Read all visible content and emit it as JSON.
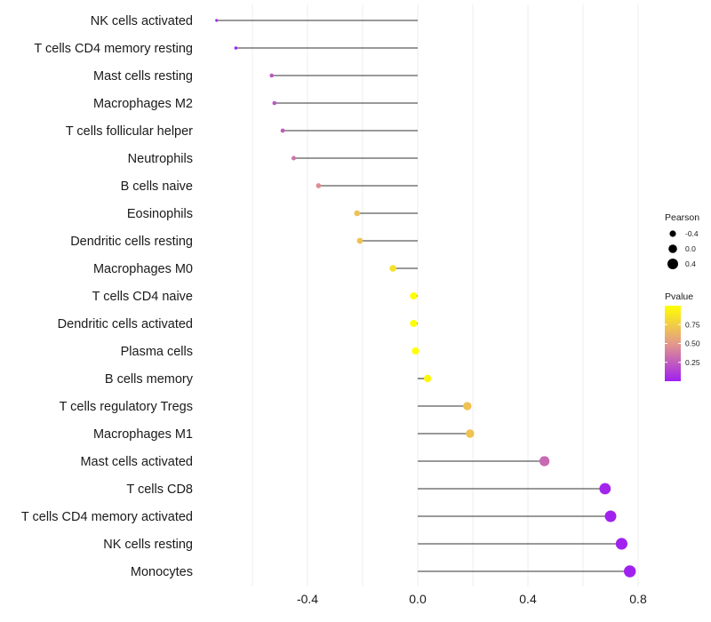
{
  "chart_data": {
    "type": "lollipop",
    "title": "",
    "xlabel": "",
    "ylabel": "",
    "xlim": [
      -0.72,
      0.8
    ],
    "xticks": [
      -0.4,
      0.0,
      0.4,
      0.8
    ],
    "xtick_labels": [
      "-0.4",
      "0.0",
      "0.4",
      "0.8"
    ],
    "grid": true,
    "categories": [
      "NK cells activated",
      "T cells CD4 memory resting",
      "Mast cells resting",
      "Macrophages M2",
      "T cells follicular helper",
      "Neutrophils",
      "B cells naive",
      "Eosinophils",
      "Dendritic cells resting",
      "Macrophages M0",
      "T cells CD4 naive",
      "Dendritic cells activated",
      "Plasma cells",
      "B cells memory",
      "T cells regulatory  Tregs ",
      "Macrophages M1",
      "Mast cells activated",
      "T cells CD8",
      "T cells CD4 memory activated",
      "NK cells resting",
      "Monocytes"
    ],
    "pearson": [
      -0.73,
      -0.66,
      -0.53,
      -0.52,
      -0.49,
      -0.45,
      -0.36,
      -0.22,
      -0.21,
      -0.09,
      -0.015,
      -0.015,
      -0.008,
      0.036,
      0.18,
      0.19,
      0.46,
      0.68,
      0.7,
      0.74,
      0.77
    ],
    "pvalue": [
      0.02,
      0.03,
      0.22,
      0.22,
      0.25,
      0.35,
      0.45,
      0.7,
      0.7,
      0.85,
      0.995,
      0.995,
      0.999,
      0.95,
      0.7,
      0.7,
      0.3,
      0.02,
      0.01,
      0.005,
      0.003
    ],
    "size_legend": {
      "title": "Pearson",
      "values": [
        -0.4,
        0.0,
        0.4
      ],
      "labels": [
        "-0.4",
        "0.0",
        "0.4"
      ]
    },
    "color_legend": {
      "title": "Pvalue",
      "ticks": [
        0.25,
        0.5,
        0.75
      ],
      "labels": [
        "0.25",
        "0.50",
        "0.75"
      ],
      "range": [
        0.0,
        1.0
      ],
      "low_color": "#a020f0",
      "mid_color": "#e39a8a",
      "high_color": "#ffff00"
    },
    "stem_color": "#333333",
    "grid_color": "#ececec"
  }
}
